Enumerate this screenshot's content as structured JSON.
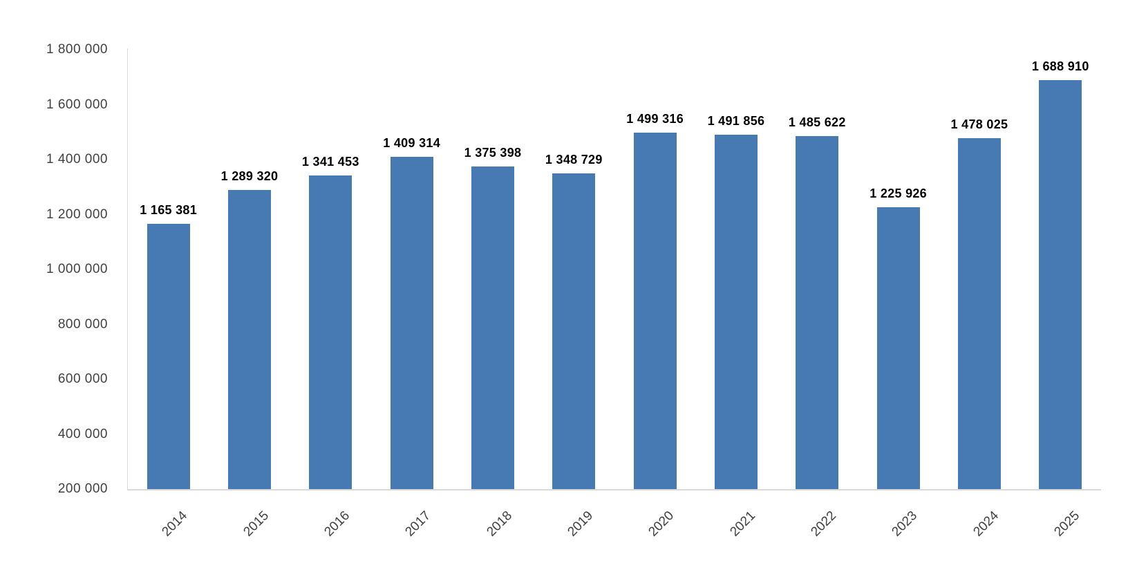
{
  "chart_data": {
    "type": "bar",
    "title": "",
    "xlabel": "",
    "ylabel": "",
    "categories": [
      "2014",
      "2015",
      "2016",
      "2017",
      "2018",
      "2019",
      "2020",
      "2021",
      "2022",
      "2023",
      "2024",
      "2025"
    ],
    "values": [
      1165381,
      1289320,
      1341453,
      1409314,
      1375398,
      1348729,
      1499316,
      1491856,
      1485622,
      1225926,
      1478025,
      1688910
    ],
    "data_labels": [
      "1 165 381",
      "1 289 320",
      "1 341 453",
      "1 409 314",
      "1 375 398",
      "1 348 729",
      "1 499 316",
      "1 491 856",
      "1 485 622",
      "1 225 926",
      "1 478 025",
      "1 688 910"
    ],
    "ylim": [
      200000,
      1800000
    ],
    "y_ticks": [
      200000,
      400000,
      600000,
      800000,
      1000000,
      1200000,
      1400000,
      1600000,
      1800000
    ],
    "y_tick_labels": [
      "200 000",
      "400 000",
      "600 000",
      "800 000",
      "1 000 000",
      "1 200 000",
      "1 400 000",
      "1 600 000",
      "1 800 000"
    ],
    "grid": false,
    "legend": "none",
    "x_label_rotation_deg": 45,
    "colors": {
      "bar": "#4779B2",
      "axis_line": "#D9D9D9",
      "tick_label": "#404040",
      "data_label": "#000000",
      "background": "#FFFFFF"
    }
  }
}
